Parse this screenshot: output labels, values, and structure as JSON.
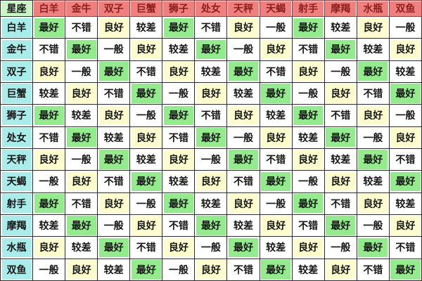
{
  "colors": {
    "header_bg": "#F08080",
    "header_text": "#8B1E1E",
    "header_border": "#A03C3C",
    "corner_bg": "#C9F5C4",
    "row_label_bg": "#A9EDEB",
    "border": "#2E2E2E",
    "cell_text": "#151515",
    "rating_colors": {
      "最好": "#93EC8C",
      "良好": "#FCFCCD",
      "不错": "#FFFFFF",
      "一般": "#FFFFFF",
      "较差": "#FFFFFF"
    }
  },
  "chart_data": {
    "type": "table",
    "corner_label": "星座",
    "columns": [
      "白羊",
      "金牛",
      "双子",
      "巨蟹",
      "狮子",
      "处女",
      "天秤",
      "天蝎",
      "射手",
      "摩羯",
      "水瓶",
      "双鱼"
    ],
    "rows": [
      {
        "label": "白羊",
        "values": [
          "最好",
          "不错",
          "良好",
          "较差",
          "最好",
          "不错",
          "良好",
          "一般",
          "最好",
          "较差",
          "良好",
          "一般"
        ]
      },
      {
        "label": "金牛",
        "values": [
          "不错",
          "最好",
          "一般",
          "良好",
          "较差",
          "最好",
          "一般",
          "良好",
          "不错",
          "最好",
          "较差",
          "良好"
        ]
      },
      {
        "label": "双子",
        "values": [
          "良好",
          "一般",
          "最好",
          "不错",
          "良好",
          "较差",
          "最好",
          "不错",
          "良好",
          "一般",
          "最好",
          "较差"
        ]
      },
      {
        "label": "巨蟹",
        "values": [
          "较差",
          "良好",
          "不错",
          "最好",
          "一般",
          "良好",
          "较差",
          "最好",
          "一般",
          "良好",
          "不错",
          "最好"
        ]
      },
      {
        "label": "狮子",
        "values": [
          "最好",
          "较差",
          "良好",
          "一般",
          "最好",
          "不错",
          "良好",
          "较差",
          "最好",
          "不错",
          "良好",
          "一般"
        ]
      },
      {
        "label": "处女",
        "values": [
          "不错",
          "最好",
          "较差",
          "良好",
          "不错",
          "最好",
          "一般",
          "良好",
          "较差",
          "最好",
          "一般",
          "良好"
        ]
      },
      {
        "label": "天秤",
        "values": [
          "良好",
          "一般",
          "最好",
          "较差",
          "良好",
          "一般",
          "最好",
          "不错",
          "良好",
          "较差",
          "最好",
          "不错"
        ]
      },
      {
        "label": "天蝎",
        "values": [
          "一般",
          "良好",
          "不错",
          "最好",
          "较差",
          "良好",
          "不错",
          "最好",
          "一般",
          "良好",
          "较差",
          "最好"
        ]
      },
      {
        "label": "射手",
        "values": [
          "最好",
          "不错",
          "良好",
          "一般",
          "最好",
          "较差",
          "良好",
          "一般",
          "最好",
          "不错",
          "良好",
          "较差"
        ]
      },
      {
        "label": "摩羯",
        "values": [
          "较差",
          "最好",
          "一般",
          "良好",
          "不错",
          "最好",
          "较差",
          "良好",
          "不错",
          "最好",
          "一般",
          "良好"
        ]
      },
      {
        "label": "水瓶",
        "values": [
          "良好",
          "较差",
          "最好",
          "不错",
          "良好",
          "一般",
          "最好",
          "较差",
          "良好",
          "一般",
          "最好",
          "不错"
        ]
      },
      {
        "label": "双鱼",
        "values": [
          "一般",
          "良好",
          "较差",
          "最好",
          "一般",
          "良好",
          "不错",
          "最好",
          "较差",
          "良好",
          "不错",
          "最好"
        ]
      }
    ],
    "rating_levels": [
      "最好",
      "良好",
      "不错",
      "一般",
      "较差"
    ]
  }
}
